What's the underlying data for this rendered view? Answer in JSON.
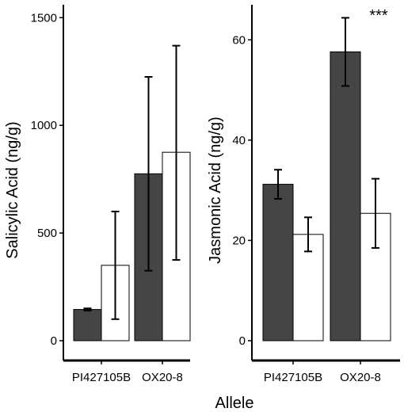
{
  "figure": {
    "xlabel": "Allele",
    "colors": {
      "filled": "#454545",
      "open": "#ffffff",
      "stroke": "#000000"
    }
  },
  "chart_data": [
    {
      "type": "bar",
      "categories": [
        "PI427105B",
        "OX20-8"
      ],
      "series": [
        {
          "fill": "dark",
          "values": [
            145,
            775
          ],
          "error_low": [
            140,
            325
          ],
          "error_high": [
            150,
            1225
          ]
        },
        {
          "fill": "white",
          "values": [
            350,
            875
          ],
          "error_low": [
            100,
            375
          ],
          "error_high": [
            600,
            1370
          ]
        }
      ],
      "ylabel": "Salicylic Acid (ng/g)",
      "ylim": [
        0,
        1560
      ],
      "yticks": [
        0,
        500,
        1000,
        1500
      ],
      "annotations": []
    },
    {
      "type": "bar",
      "categories": [
        "PI427105B",
        "OX20-8"
      ],
      "series": [
        {
          "fill": "dark",
          "values": [
            31.2,
            57.6
          ],
          "error_low": [
            28.3,
            50.8
          ],
          "error_high": [
            34.1,
            64.4
          ]
        },
        {
          "fill": "white",
          "values": [
            21.2,
            25.4
          ],
          "error_low": [
            17.8,
            18.5
          ],
          "error_high": [
            24.6,
            32.3
          ]
        }
      ],
      "ylabel": "Jasmonic Acid (ng/g)",
      "ylim": [
        0,
        67
      ],
      "yticks": [
        0,
        20,
        40,
        60
      ],
      "annotations": [
        {
          "text": "***",
          "category": "OX20-8"
        }
      ]
    }
  ]
}
